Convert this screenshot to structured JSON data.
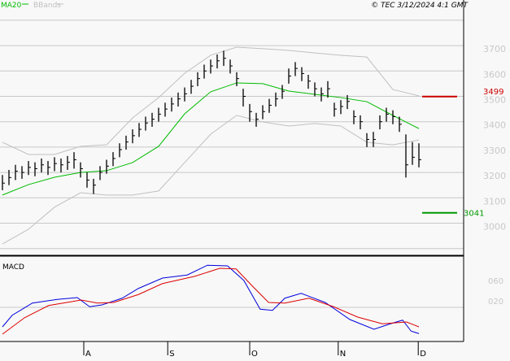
{
  "header": {
    "legend_ma": "MA20",
    "legend_bb": "BBands",
    "copyright": "© TEC 3/12/2024 4:1 GMT"
  },
  "colors": {
    "ma20": "#00bb00",
    "bbands": "#c0c0c0",
    "bars": "#000000",
    "resistance": "#cc0000",
    "support": "#009900",
    "macd": "#0000dd",
    "signal": "#dd0000"
  },
  "chart_data": [
    {
      "type": "bar",
      "subtype": "ohlc",
      "ylim": [
        2900,
        3800
      ],
      "y_ticks": [
        "3700",
        "3600",
        "3500",
        "3400",
        "3300",
        "3200",
        "3100",
        "3000"
      ],
      "y_tick_values": [
        3700,
        3600,
        3500,
        3400,
        3300,
        3200,
        3100,
        3000
      ],
      "x_ticks": [
        "A",
        "S",
        "O",
        "N",
        "D"
      ],
      "x_tick_bars": [
        12.5,
        25.4,
        38,
        51.6,
        63.9
      ],
      "grid": true,
      "bars_low_high_close": [
        [
          3130,
          3190,
          3158
        ],
        [
          3150,
          3210,
          3180
        ],
        [
          3170,
          3230,
          3205
        ],
        [
          3175,
          3225,
          3200
        ],
        [
          3190,
          3245,
          3220
        ],
        [
          3185,
          3240,
          3215
        ],
        [
          3200,
          3255,
          3230
        ],
        [
          3190,
          3245,
          3220
        ],
        [
          3205,
          3260,
          3235
        ],
        [
          3200,
          3255,
          3230
        ],
        [
          3210,
          3265,
          3240
        ],
        [
          3215,
          3280,
          3250
        ],
        [
          3180,
          3240,
          3215
        ],
        [
          3140,
          3200,
          3170
        ],
        [
          3115,
          3175,
          3150
        ],
        [
          3170,
          3225,
          3200
        ],
        [
          3195,
          3250,
          3225
        ],
        [
          3225,
          3280,
          3255
        ],
        [
          3260,
          3315,
          3290
        ],
        [
          3290,
          3345,
          3320
        ],
        [
          3315,
          3370,
          3345
        ],
        [
          3340,
          3395,
          3370
        ],
        [
          3365,
          3420,
          3395
        ],
        [
          3380,
          3435,
          3410
        ],
        [
          3400,
          3455,
          3430
        ],
        [
          3420,
          3475,
          3450
        ],
        [
          3440,
          3495,
          3470
        ],
        [
          3460,
          3515,
          3490
        ],
        [
          3480,
          3535,
          3510
        ],
        [
          3510,
          3565,
          3540
        ],
        [
          3540,
          3595,
          3570
        ],
        [
          3570,
          3625,
          3600
        ],
        [
          3590,
          3645,
          3620
        ],
        [
          3610,
          3665,
          3640
        ],
        [
          3620,
          3680,
          3650
        ],
        [
          3590,
          3645,
          3620
        ],
        [
          3540,
          3595,
          3570
        ],
        [
          3460,
          3530,
          3500
        ],
        [
          3400,
          3470,
          3440
        ],
        [
          3380,
          3435,
          3410
        ],
        [
          3410,
          3465,
          3440
        ],
        [
          3435,
          3490,
          3465
        ],
        [
          3460,
          3515,
          3490
        ],
        [
          3490,
          3545,
          3520
        ],
        [
          3550,
          3610,
          3580
        ],
        [
          3580,
          3635,
          3610
        ],
        [
          3560,
          3615,
          3590
        ],
        [
          3530,
          3585,
          3560
        ],
        [
          3500,
          3555,
          3530
        ],
        [
          3480,
          3535,
          3510
        ],
        [
          3495,
          3560,
          3530
        ],
        [
          3420,
          3475,
          3450
        ],
        [
          3430,
          3485,
          3460
        ],
        [
          3450,
          3505,
          3480
        ],
        [
          3390,
          3445,
          3420
        ],
        [
          3370,
          3425,
          3400
        ],
        [
          3300,
          3355,
          3330
        ],
        [
          3300,
          3360,
          3330
        ],
        [
          3370,
          3425,
          3400
        ],
        [
          3400,
          3455,
          3430
        ],
        [
          3390,
          3445,
          3420
        ],
        [
          3360,
          3420,
          3390
        ],
        [
          3180,
          3350,
          3230
        ],
        [
          3230,
          3320,
          3260
        ],
        [
          3220,
          3315,
          3250
        ]
      ],
      "ma20_every_4_bars": [
        3111,
        3152,
        3181,
        3200,
        3207,
        3239,
        3303,
        3431,
        3518,
        3553,
        3550,
        3521,
        3508,
        3495,
        3479,
        3425,
        3373
      ],
      "bb_upper_every_4_bars": [
        3319,
        3271,
        3271,
        3303,
        3309,
        3415,
        3495,
        3591,
        3662,
        3694,
        3688,
        3681,
        3671,
        3662,
        3655,
        3527,
        3502
      ],
      "bb_lower_every_4_bars": [
        2918,
        2976,
        3063,
        3120,
        3111,
        3111,
        3127,
        3239,
        3351,
        3425,
        3399,
        3383,
        3393,
        3383,
        3319,
        3309,
        3328
      ],
      "resistance": {
        "value": 3499,
        "label": "3499"
      },
      "support": {
        "value": 3041,
        "label": "3041"
      }
    },
    {
      "type": "line",
      "title": "MACD",
      "y_ticks": [
        "060",
        "020"
      ],
      "y_tick_values": [
        0.6,
        0.2
      ],
      "series": [
        {
          "role": "macd",
          "x": [
            0,
            1.5,
            4.6,
            8.4,
            11.5,
            13.4,
            15.3,
            18.4,
            20.9,
            24.6,
            28.4,
            31.5,
            34.6,
            37.1,
            39.6,
            41.5,
            43.4,
            45.9,
            49.6,
            53.4,
            57.1,
            59.6,
            61.5,
            62.8,
            64
          ],
          "values": [
            -0.12,
            0.07,
            0.27,
            0.33,
            0.36,
            0.21,
            0.24,
            0.35,
            0.51,
            0.68,
            0.73,
            0.89,
            0.88,
            0.64,
            0.17,
            0.15,
            0.35,
            0.43,
            0.28,
            0.0,
            -0.16,
            -0.07,
            -0.01,
            -0.19,
            -0.23
          ]
        },
        {
          "role": "signal",
          "x": [
            0,
            3.4,
            7.1,
            12.1,
            14.6,
            17.1,
            20.9,
            24.6,
            29.6,
            33.4,
            35.9,
            38.4,
            40.9,
            43.4,
            47.1,
            50.9,
            54.6,
            58.4,
            62.1,
            64
          ],
          "values": [
            -0.24,
            0.03,
            0.23,
            0.32,
            0.27,
            0.28,
            0.41,
            0.59,
            0.71,
            0.84,
            0.83,
            0.55,
            0.28,
            0.27,
            0.35,
            0.21,
            0.04,
            -0.07,
            -0.04,
            -0.12
          ]
        }
      ]
    }
  ]
}
